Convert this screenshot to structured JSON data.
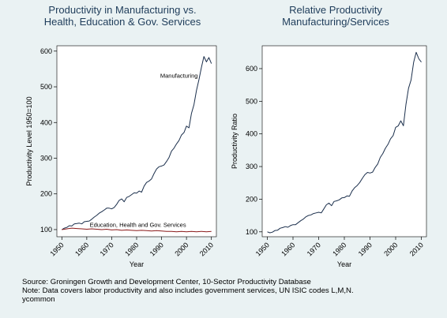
{
  "colors": {
    "background": "#eaf2f3",
    "plot_background": "#ffffff",
    "title": "#1e3c5a",
    "manufacturing_line": "#1b2f4c",
    "services_line": "#8a1a1a",
    "ratio_line": "#1b2f4c"
  },
  "caption": {
    "source": "Source: Groningen Growth and Development Center, 10-Sector Productivity Database",
    "note": "Note: Data covers labor productivity and also includes government services, UN ISIC codes L,M,N.",
    "credit": "ycommon"
  },
  "chart_data": [
    {
      "type": "line",
      "title_line1": "Productivity in Manufacturing vs.",
      "title_line2": "Health, Education & Gov. Services",
      "xlabel": "Year",
      "ylabel": "Productivity Level 1950=100",
      "xlim": [
        1948,
        2012
      ],
      "ylim": [
        80,
        615
      ],
      "xticks": [
        1950,
        1960,
        1970,
        1980,
        1990,
        2000,
        2010
      ],
      "xtick_labels": [
        "1950",
        "1960",
        "1970",
        "1980",
        "1990",
        "2000",
        "2010"
      ],
      "yticks": [
        100,
        200,
        300,
        400,
        500,
        600
      ],
      "ytick_labels": [
        "100",
        "200",
        "300",
        "400",
        "500",
        "600"
      ],
      "grid": false,
      "legend": "none",
      "series": [
        {
          "label": "Manufacturing",
          "label_at": [
            1997,
            525
          ],
          "x": [
            1950,
            1951,
            1952,
            1953,
            1954,
            1955,
            1956,
            1957,
            1958,
            1959,
            1960,
            1961,
            1962,
            1963,
            1964,
            1965,
            1966,
            1967,
            1968,
            1969,
            1970,
            1971,
            1972,
            1973,
            1974,
            1975,
            1976,
            1977,
            1978,
            1979,
            1980,
            1981,
            1982,
            1983,
            1984,
            1985,
            1986,
            1987,
            1988,
            1989,
            1990,
            1991,
            1992,
            1993,
            1994,
            1995,
            1996,
            1997,
            1998,
            1999,
            2000,
            2001,
            2002,
            2003,
            2004,
            2005,
            2006,
            2007,
            2008,
            2009,
            2010
          ],
          "y": [
            100,
            104,
            106,
            111,
            110,
            116,
            117,
            118,
            116,
            122,
            123,
            124,
            129,
            135,
            140,
            146,
            150,
            155,
            160,
            160,
            158,
            162,
            171,
            182,
            186,
            178,
            190,
            193,
            198,
            203,
            202,
            208,
            205,
            222,
            232,
            236,
            242,
            257,
            270,
            276,
            278,
            281,
            291,
            302,
            320,
            328,
            340,
            350,
            365,
            372,
            390,
            385,
            425,
            450,
            490,
            520,
            555,
            585,
            570,
            582,
            565
          ]
        },
        {
          "label": "Education, Health and Gov. Services",
          "label_at": [
            1980.5,
            108
          ],
          "x": [
            1950,
            1952,
            1954,
            1956,
            1958,
            1960,
            1962,
            1964,
            1966,
            1968,
            1970,
            1972,
            1974,
            1976,
            1978,
            1980,
            1982,
            1984,
            1986,
            1988,
            1990,
            1992,
            1994,
            1996,
            1998,
            2000,
            2002,
            2004,
            2006,
            2008,
            2010
          ],
          "y": [
            100,
            102,
            104,
            103,
            102,
            101,
            102,
            101,
            100,
            101,
            99,
            100,
            98,
            99,
            98,
            97,
            98,
            97,
            96,
            97,
            96,
            95,
            95,
            94,
            95,
            94,
            95,
            94,
            95,
            94,
            95
          ]
        }
      ]
    },
    {
      "type": "line",
      "title_line1": "Relative Productivity",
      "title_line2": "Manufacturing/Services",
      "xlabel": "Year",
      "ylabel": "Productivity Ratio",
      "xlim": [
        1948,
        2012
      ],
      "ylim": [
        85,
        670
      ],
      "xticks": [
        1950,
        1960,
        1970,
        1980,
        1990,
        2000,
        2010
      ],
      "xtick_labels": [
        "1950",
        "1960",
        "1970",
        "1980",
        "1990",
        "2000",
        "2010"
      ],
      "yticks": [
        100,
        200,
        300,
        400,
        500,
        600
      ],
      "ytick_labels": [
        "100",
        "200",
        "300",
        "400",
        "500",
        "600"
      ],
      "grid": false,
      "legend": "none",
      "series": [
        {
          "x": [
            1950,
            1951,
            1952,
            1953,
            1954,
            1955,
            1956,
            1957,
            1958,
            1959,
            1960,
            1961,
            1962,
            1963,
            1964,
            1965,
            1966,
            1967,
            1968,
            1969,
            1970,
            1971,
            1972,
            1973,
            1974,
            1975,
            1976,
            1977,
            1978,
            1979,
            1980,
            1981,
            1982,
            1983,
            1984,
            1985,
            1986,
            1987,
            1988,
            1989,
            1990,
            1991,
            1992,
            1993,
            1994,
            1995,
            1996,
            1997,
            1998,
            1999,
            2000,
            2001,
            2002,
            2003,
            2004,
            2005,
            2006,
            2007,
            2008,
            2009,
            2010
          ],
          "y": [
            100,
            97,
            99,
            104,
            105,
            111,
            113,
            116,
            114,
            119,
            122,
            122,
            128,
            134,
            139,
            146,
            150,
            152,
            156,
            158,
            160,
            158,
            170,
            183,
            188,
            180,
            193,
            195,
            198,
            204,
            205,
            210,
            209,
            225,
            235,
            242,
            251,
            264,
            275,
            282,
            280,
            283,
            297,
            308,
            328,
            340,
            356,
            368,
            385,
            395,
            420,
            425,
            440,
            425,
            490,
            540,
            565,
            620,
            650,
            630,
            620
          ]
        }
      ]
    }
  ]
}
